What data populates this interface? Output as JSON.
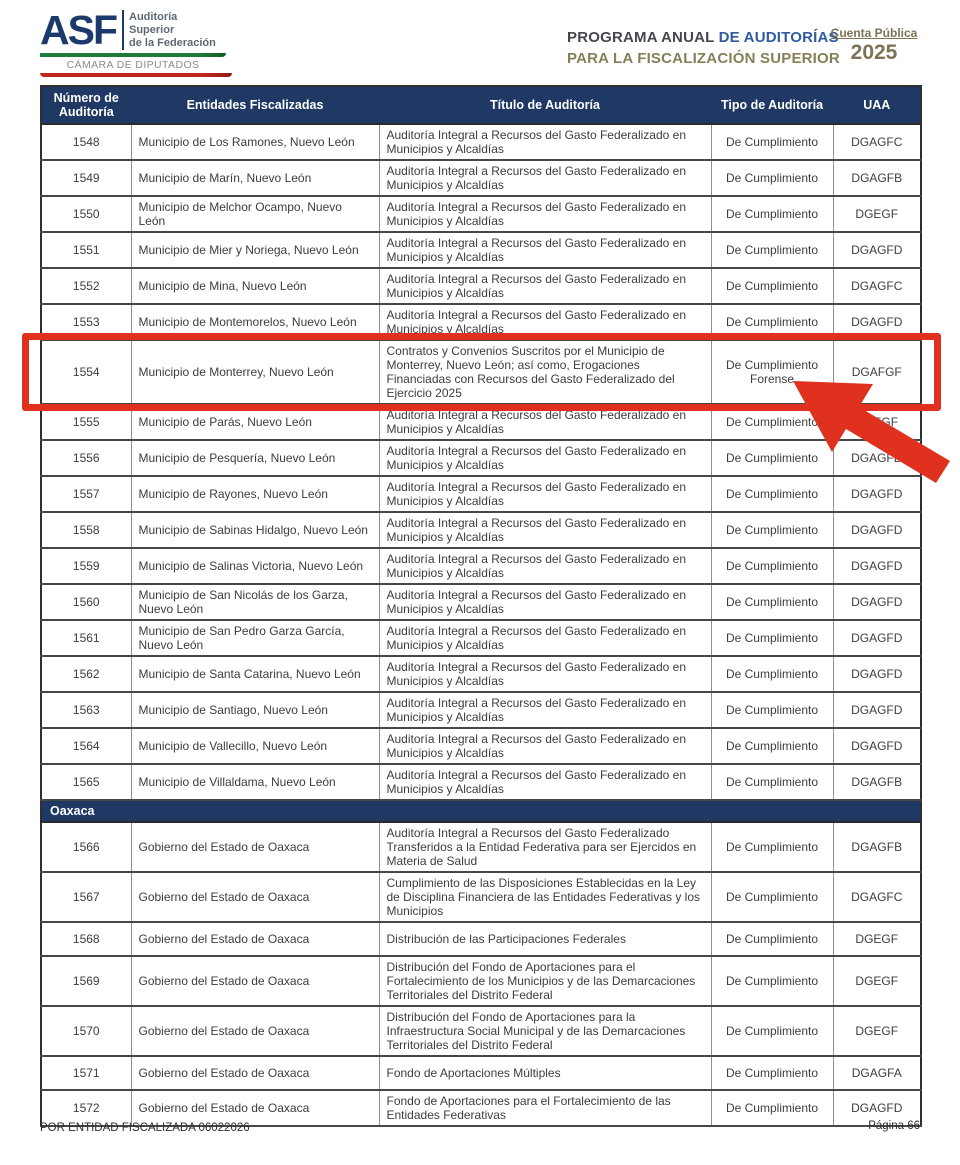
{
  "logo": {
    "asf": "ASF",
    "tagline_lines": [
      "Auditoría",
      "Superior",
      "de la Federación"
    ],
    "chamber": "CÁMARA DE DIPUTADOS"
  },
  "header": {
    "title_part1": "PROGRAMA ANUAL",
    "title_part2": "DE AUDITORÍAS",
    "title_line2": "PARA LA FISCALIZACIÓN SUPERIOR",
    "cuenta_publica": "Cuenta Pública",
    "year": "2025"
  },
  "colors": {
    "header_navy": "#1f3864",
    "annotation_red": "#e0301e",
    "title_blue": "#2e5c9e",
    "olive": "#7a7354"
  },
  "table": {
    "columns": [
      "Número de Auditoría",
      "Entidades Fiscalizadas",
      "Título de Auditoría",
      "Tipo de Auditoría",
      "UAA"
    ],
    "rows": [
      {
        "num": "1548",
        "entity": "Municipio de Los Ramones, Nuevo León",
        "title": "Auditoría Integral a Recursos del Gasto Federalizado en Municipios y Alcaldías",
        "tipo": "De Cumplimiento",
        "uaa": "DGAGFC"
      },
      {
        "num": "1549",
        "entity": "Municipio de Marín, Nuevo León",
        "title": "Auditoría Integral a Recursos del Gasto Federalizado en Municipios y Alcaldías",
        "tipo": "De Cumplimiento",
        "uaa": "DGAGFB"
      },
      {
        "num": "1550",
        "entity": "Municipio de Melchor Ocampo, Nuevo León",
        "title": "Auditoría Integral a Recursos del Gasto Federalizado en Municipios y Alcaldías",
        "tipo": "De Cumplimiento",
        "uaa": "DGEGF"
      },
      {
        "num": "1551",
        "entity": "Municipio de Mier y Noriega, Nuevo León",
        "title": "Auditoría Integral a Recursos del Gasto Federalizado en Municipios y Alcaldías",
        "tipo": "De Cumplimiento",
        "uaa": "DGAGFD"
      },
      {
        "num": "1552",
        "entity": "Municipio de Mina, Nuevo León",
        "title": "Auditoría Integral a Recursos del Gasto Federalizado en Municipios y Alcaldías",
        "tipo": "De Cumplimiento",
        "uaa": "DGAGFC"
      },
      {
        "num": "1553",
        "entity": "Municipio de Montemorelos, Nuevo León",
        "title": "Auditoría Integral a Recursos del Gasto Federalizado en Municipios y Alcaldías",
        "tipo": "De Cumplimiento",
        "uaa": "DGAGFD"
      },
      {
        "num": "1554",
        "entity": "Municipio de Monterrey, Nuevo León",
        "title": "Contratos y Convenios Suscritos por el Municipio de Monterrey, Nuevo León; así como, Erogaciones Financiadas con Recursos del Gasto Federalizado del Ejercicio 2025",
        "tipo": "De Cumplimiento Forense",
        "uaa": "DGAFGF",
        "highlighted": true
      },
      {
        "num": "1555",
        "entity": "Municipio de Parás, Nuevo León",
        "title": "Auditoría Integral a Recursos del Gasto Federalizado en Municipios y Alcaldías",
        "tipo": "De Cumplimiento",
        "uaa": "DGEGF"
      },
      {
        "num": "1556",
        "entity": "Municipio de Pesquería, Nuevo León",
        "title": "Auditoría Integral a Recursos del Gasto Federalizado en Municipios y Alcaldías",
        "tipo": "De Cumplimiento",
        "uaa": "DGAGFD"
      },
      {
        "num": "1557",
        "entity": "Municipio de Rayones, Nuevo León",
        "title": "Auditoría Integral a Recursos del Gasto Federalizado en Municipios y Alcaldías",
        "tipo": "De Cumplimiento",
        "uaa": "DGAGFD"
      },
      {
        "num": "1558",
        "entity": "Municipio de Sabinas Hidalgo, Nuevo León",
        "title": "Auditoría Integral a Recursos del Gasto Federalizado en Municipios y Alcaldías",
        "tipo": "De Cumplimiento",
        "uaa": "DGAGFD"
      },
      {
        "num": "1559",
        "entity": "Municipio de Salinas Victoria, Nuevo León",
        "title": "Auditoría Integral a Recursos del Gasto Federalizado en Municipios y Alcaldías",
        "tipo": "De Cumplimiento",
        "uaa": "DGAGFD"
      },
      {
        "num": "1560",
        "entity": "Municipio de San Nicolás de los Garza, Nuevo León",
        "title": "Auditoría Integral a Recursos del Gasto Federalizado en Municipios y Alcaldías",
        "tipo": "De Cumplimiento",
        "uaa": "DGAGFD"
      },
      {
        "num": "1561",
        "entity": "Municipio de San Pedro Garza García, Nuevo León",
        "title": "Auditoría Integral a Recursos del Gasto Federalizado en Municipios y Alcaldías",
        "tipo": "De Cumplimiento",
        "uaa": "DGAGFD"
      },
      {
        "num": "1562",
        "entity": "Municipio de Santa Catarina, Nuevo León",
        "title": "Auditoría Integral a Recursos del Gasto Federalizado en Municipios y Alcaldías",
        "tipo": "De Cumplimiento",
        "uaa": "DGAGFD"
      },
      {
        "num": "1563",
        "entity": "Municipio de Santiago, Nuevo León",
        "title": "Auditoría Integral a Recursos del Gasto Federalizado en Municipios y Alcaldías",
        "tipo": "De Cumplimiento",
        "uaa": "DGAGFD"
      },
      {
        "num": "1564",
        "entity": "Municipio de Vallecillo, Nuevo León",
        "title": "Auditoría Integral a Recursos del Gasto Federalizado en Municipios y Alcaldías",
        "tipo": "De Cumplimiento",
        "uaa": "DGAGFD"
      },
      {
        "num": "1565",
        "entity": "Municipio de Villaldama, Nuevo León",
        "title": "Auditoría Integral a Recursos del Gasto Federalizado en Municipios y Alcaldías",
        "tipo": "De Cumplimiento",
        "uaa": "DGAGFB"
      },
      {
        "section": "Oaxaca"
      },
      {
        "num": "1566",
        "entity": "Gobierno del Estado de Oaxaca",
        "title": "Auditoría Integral a Recursos del Gasto Federalizado Transferidos a la Entidad Federativa para ser Ejercidos en Materia de Salud",
        "tipo": "De Cumplimiento",
        "uaa": "DGAGFB"
      },
      {
        "num": "1567",
        "entity": "Gobierno del Estado de Oaxaca",
        "title": "Cumplimiento de las Disposiciones Establecidas en la Ley de Disciplina Financiera de las Entidades Federativas y los Municipios",
        "tipo": "De Cumplimiento",
        "uaa": "DGAGFC"
      },
      {
        "num": "1568",
        "entity": "Gobierno del Estado de Oaxaca",
        "title": "Distribución de las Participaciones Federales",
        "tipo": "De Cumplimiento",
        "uaa": "DGEGF"
      },
      {
        "num": "1569",
        "entity": "Gobierno del Estado de Oaxaca",
        "title": "Distribución del Fondo de Aportaciones para el Fortalecimiento de los Municipios y de las Demarcaciones Territoriales del Distrito Federal",
        "tipo": "De Cumplimiento",
        "uaa": "DGEGF"
      },
      {
        "num": "1570",
        "entity": "Gobierno del Estado de Oaxaca",
        "title": "Distribución del Fondo de Aportaciones para la Infraestructura Social Municipal y de las Demarcaciones Territoriales del Distrito Federal",
        "tipo": "De Cumplimiento",
        "uaa": "DGEGF"
      },
      {
        "num": "1571",
        "entity": "Gobierno del Estado de Oaxaca",
        "title": "Fondo de Aportaciones Múltiples",
        "tipo": "De Cumplimiento",
        "uaa": "DGAGFA"
      },
      {
        "num": "1572",
        "entity": "Gobierno del Estado de Oaxaca",
        "title": "Fondo de Aportaciones para el Fortalecimiento de las Entidades Federativas",
        "tipo": "De Cumplimiento",
        "uaa": "DGAGFD"
      }
    ]
  },
  "annotation": {
    "highlighted_audit_number": "1554",
    "shape": "red box around row with red arrow pointing to Tipo de Auditoría"
  },
  "footer": {
    "left": "POR ENTIDAD FISCALIZADA 06022026",
    "right": "Página 66"
  }
}
